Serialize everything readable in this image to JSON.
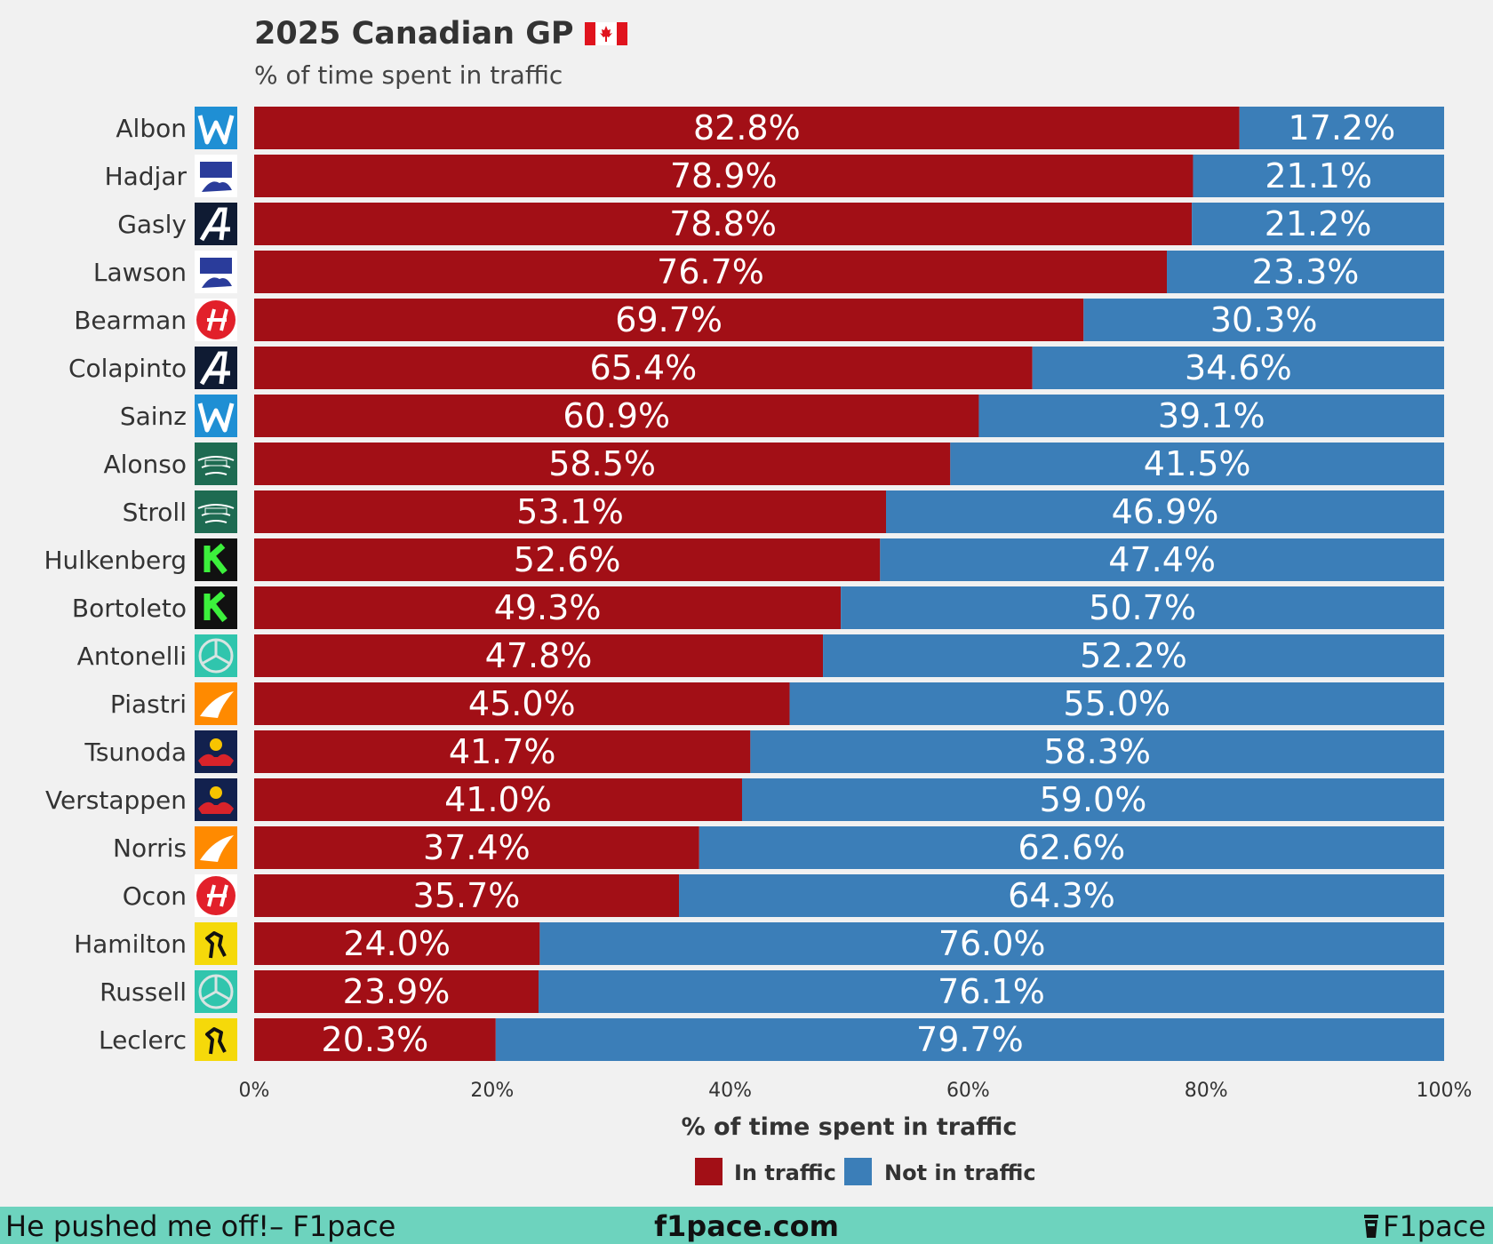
{
  "colors": {
    "in_traffic": "#a20f16",
    "not_in_traffic": "#3b7eb8",
    "background": "#f1f1f1",
    "footer": "#6dd3be"
  },
  "chart_data": {
    "type": "bar",
    "orientation": "horizontal",
    "stacked": true,
    "title": "2025 Canadian GP",
    "subtitle": "% of time spent in traffic",
    "xlabel": "% of time spent in traffic",
    "ylabel": "",
    "xlim": [
      0,
      100
    ],
    "x_ticks": [
      "0%",
      "20%",
      "40%",
      "60%",
      "80%",
      "100%"
    ],
    "legend_position": "bottom-center",
    "categories": [
      "Albon",
      "Hadjar",
      "Gasly",
      "Lawson",
      "Bearman",
      "Colapinto",
      "Sainz",
      "Alonso",
      "Stroll",
      "Hulkenberg",
      "Bortoleto",
      "Antonelli",
      "Piastri",
      "Tsunoda",
      "Verstappen",
      "Norris",
      "Ocon",
      "Hamilton",
      "Russell",
      "Leclerc"
    ],
    "teams": [
      "williams",
      "racing-bulls",
      "alpine",
      "racing-bulls",
      "haas",
      "alpine",
      "williams",
      "aston-martin",
      "aston-martin",
      "sauber",
      "sauber",
      "mercedes",
      "mclaren",
      "red-bull",
      "red-bull",
      "mclaren",
      "haas",
      "ferrari",
      "mercedes",
      "ferrari"
    ],
    "series": [
      {
        "name": "In traffic",
        "values": [
          82.8,
          78.9,
          78.8,
          76.7,
          69.7,
          65.4,
          60.9,
          58.5,
          53.1,
          52.6,
          49.3,
          47.8,
          45.0,
          41.7,
          41.0,
          37.4,
          35.7,
          24.0,
          23.9,
          20.3
        ]
      },
      {
        "name": "Not in traffic",
        "values": [
          17.2,
          21.1,
          21.2,
          23.3,
          30.3,
          34.6,
          39.1,
          41.5,
          46.9,
          47.4,
          50.7,
          52.2,
          55.0,
          58.3,
          59.0,
          62.6,
          64.3,
          76.0,
          76.1,
          79.7
        ]
      }
    ],
    "value_labels": [
      [
        "82.8%",
        "78.9%",
        "78.8%",
        "76.7%",
        "69.7%",
        "65.4%",
        "60.9%",
        "58.5%",
        "53.1%",
        "52.6%",
        "49.3%",
        "47.8%",
        "45.0%",
        "41.7%",
        "41.0%",
        "37.4%",
        "35.7%",
        "24.0%",
        "23.9%",
        "20.3%"
      ],
      [
        "17.2%",
        "21.1%",
        "21.2%",
        "23.3%",
        "30.3%",
        "34.6%",
        "39.1%",
        "41.5%",
        "46.9%",
        "47.4%",
        "50.7%",
        "52.2%",
        "55.0%",
        "58.3%",
        "59.0%",
        "62.6%",
        "64.3%",
        "76.0%",
        "76.1%",
        "79.7%"
      ]
    ]
  },
  "footer": {
    "left": "He pushed me off!– F1pace",
    "center": "f1pace.com",
    "right": "F1pace"
  }
}
